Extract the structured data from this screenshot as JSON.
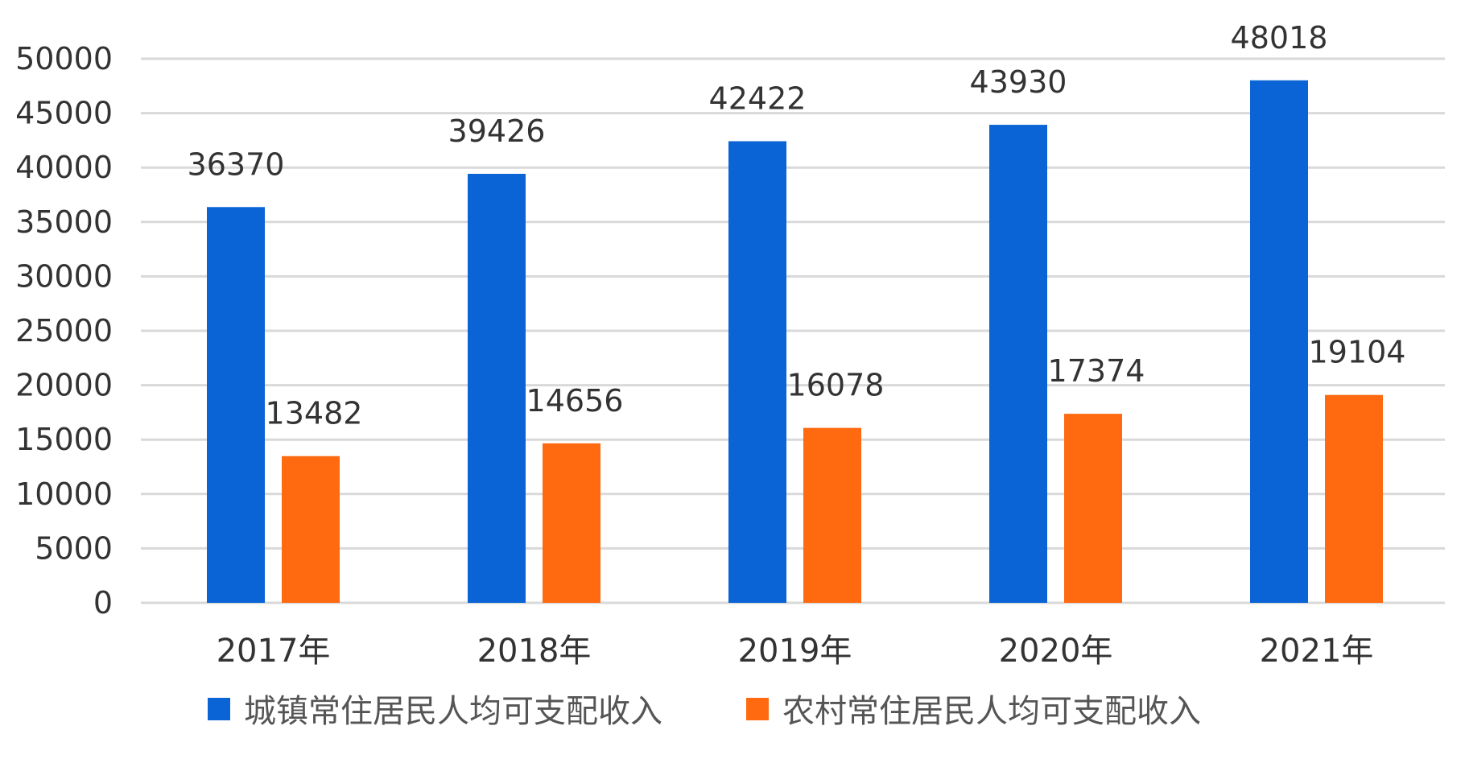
{
  "chart_data": {
    "type": "bar",
    "categories": [
      "2017年",
      "2018年",
      "2019年",
      "2020年",
      "2021年"
    ],
    "series": [
      {
        "name": "城镇常住居民人均可支配收入",
        "color": "#0a64d6",
        "values": [
          36370,
          39426,
          42422,
          43930,
          48018
        ],
        "labels": [
          "36370",
          "39426",
          "42422",
          "43930",
          "48018"
        ]
      },
      {
        "name": "农村常住居民人均可支配收入",
        "color": "#ff6a10",
        "values": [
          13482,
          14656,
          16078,
          17374,
          19104
        ],
        "labels": [
          "13482",
          "14656",
          "16078",
          "17374",
          "19104"
        ]
      }
    ],
    "yticks": [
      "0",
      "5000",
      "10000",
      "15000",
      "20000",
      "25000",
      "30000",
      "35000",
      "40000",
      "45000",
      "50000"
    ],
    "ylim": [
      0,
      50000
    ],
    "grid": true,
    "legend_position": "bottom"
  }
}
